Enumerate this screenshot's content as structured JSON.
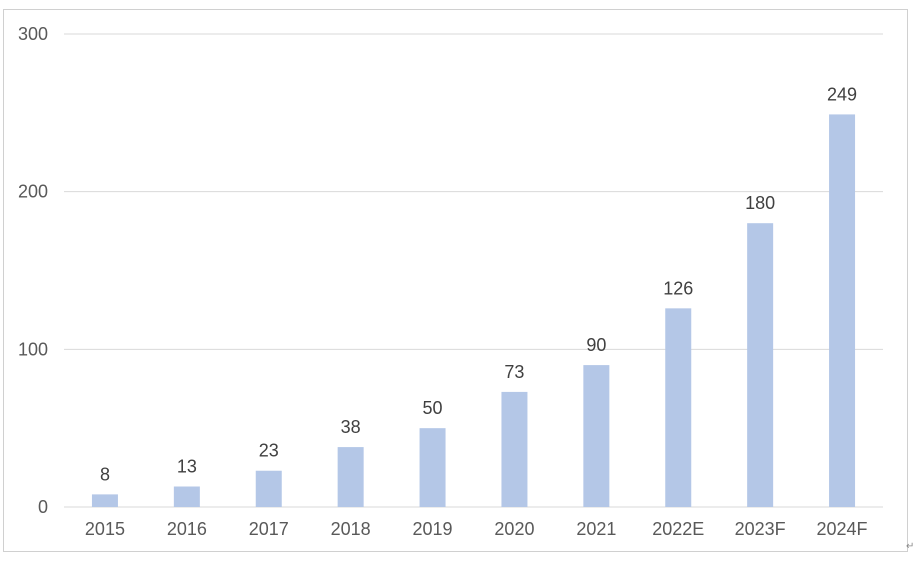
{
  "chart_data": {
    "type": "bar",
    "categories": [
      "2015",
      "2016",
      "2017",
      "2018",
      "2019",
      "2020",
      "2021",
      "2022E",
      "2023F",
      "2024F"
    ],
    "values": [
      8,
      13,
      23,
      38,
      50,
      73,
      90,
      126,
      180,
      249
    ],
    "data_labels": [
      "8",
      "13",
      "23",
      "38",
      "50",
      "73",
      "90",
      "126",
      "180",
      "249"
    ],
    "title": "",
    "xlabel": "",
    "ylabel": "",
    "ylim": [
      0,
      300
    ],
    "yticks": [
      0,
      100,
      200,
      300
    ],
    "ytick_labels": [
      "0",
      "100",
      "200",
      "300"
    ],
    "grid": true,
    "legend": "none",
    "bar_color": "#b4c7e7",
    "grid_color": "#d9d9d9"
  },
  "page": {
    "return_mark": "↵"
  }
}
